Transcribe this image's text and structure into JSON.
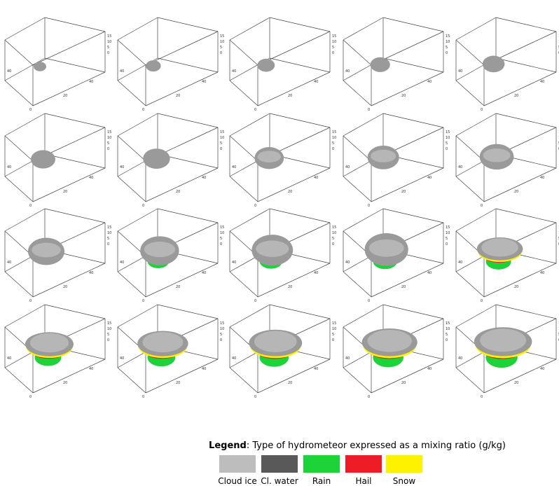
{
  "axis_labels": {
    "x": [
      "0",
      "20",
      "40"
    ],
    "y": [
      "40"
    ],
    "z": [
      "15",
      "10",
      "5",
      "0"
    ]
  },
  "legend": {
    "title": "Legend",
    "description": ": Type of hydrometeor expressed as a mixing ratio (g/kg)",
    "items": [
      {
        "label": "Cloud ice",
        "color": "#bdbdbd"
      },
      {
        "label": "Cl. water",
        "color": "#595959"
      },
      {
        "label": "Rain",
        "color": "#1ed33a"
      },
      {
        "label": "Hail",
        "color": "#ee1c25"
      },
      {
        "label": "Snow",
        "color": "#fff200"
      }
    ]
  }
}
